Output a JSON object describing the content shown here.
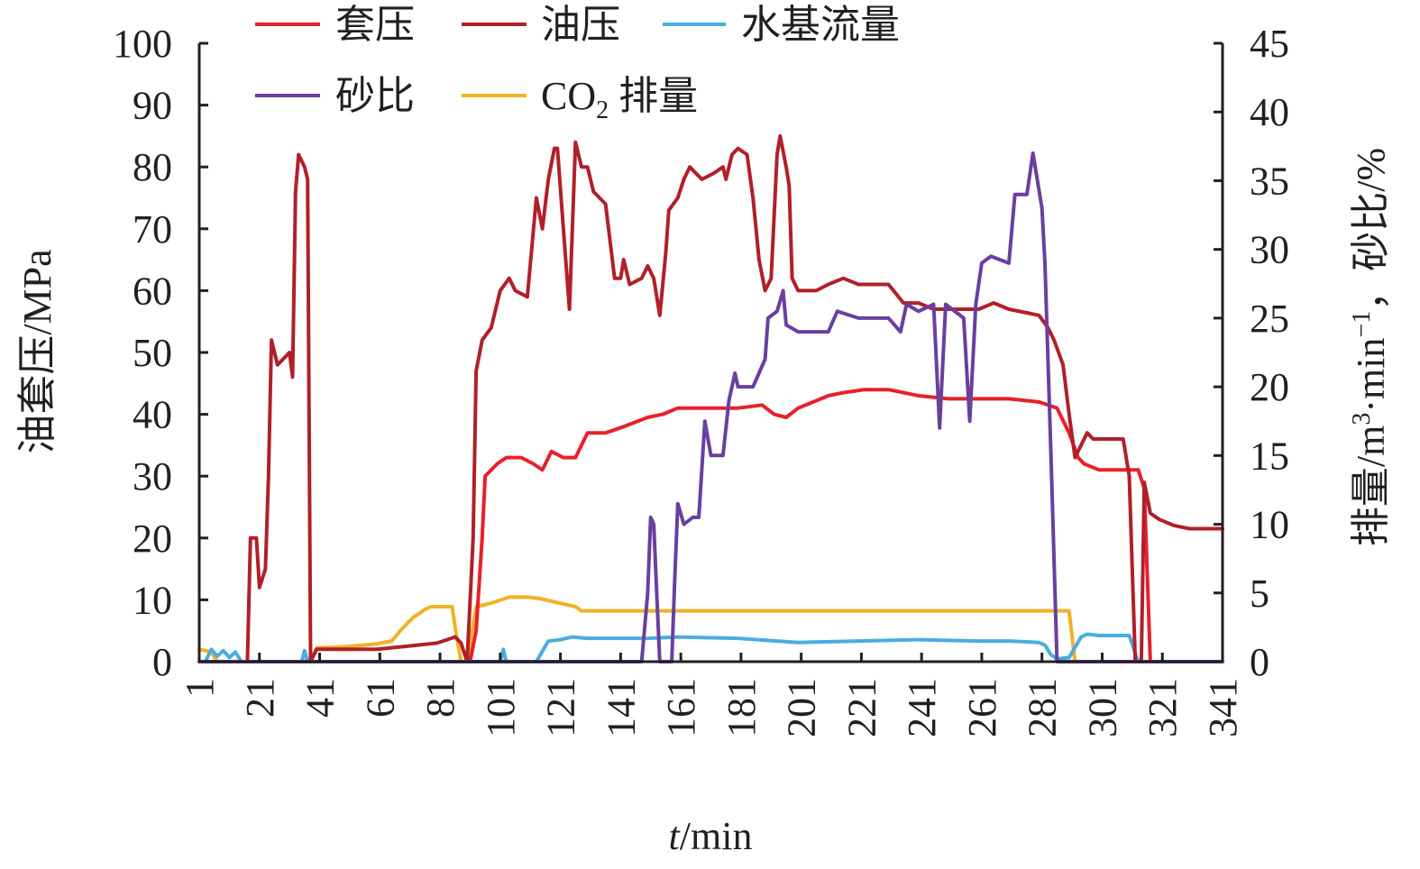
{
  "chart_data": {
    "type": "line",
    "xlabel_italic": "t",
    "xlabel_rest": "/min",
    "ylabel_left": "油套压/MPa",
    "ylabel_right_parts": [
      "排量/m",
      "3",
      "·min",
      "−1",
      "，砂比/%"
    ],
    "x_ticks": [
      "1",
      "21",
      "41",
      "61",
      "81",
      "101",
      "121",
      "141",
      "161",
      "181",
      "201",
      "221",
      "241",
      "261",
      "281",
      "301",
      "321",
      "341"
    ],
    "xlim": [
      1,
      341
    ],
    "y_left_ticks": [
      "0",
      "10",
      "20",
      "30",
      "40",
      "50",
      "60",
      "70",
      "80",
      "90",
      "100"
    ],
    "ylim_left": [
      0,
      100
    ],
    "y_right_ticks": [
      "0",
      "5",
      "10",
      "15",
      "20",
      "25",
      "30",
      "35",
      "40",
      "45"
    ],
    "ylim_right": [
      0,
      45
    ],
    "grid": false,
    "legend": {
      "placement": "top-left",
      "items": [
        {
          "key": "casing",
          "label": "套压"
        },
        {
          "key": "tubing",
          "label": "油压"
        },
        {
          "key": "water",
          "label": "水基流量"
        },
        {
          "key": "sand",
          "label": "砂比"
        },
        {
          "key": "co2",
          "label_main": "CO",
          "label_sub": "2",
          "label_after": " 排量"
        }
      ]
    },
    "series": [
      {
        "key": "casing",
        "axis": "left",
        "color": "#e8202a",
        "points": [
          [
            1,
            0
          ],
          [
            21,
            0
          ],
          [
            88,
            0
          ],
          [
            91,
            0
          ],
          [
            93,
            5
          ],
          [
            95,
            20
          ],
          [
            96,
            30
          ],
          [
            100,
            32
          ],
          [
            103,
            33
          ],
          [
            108,
            33
          ],
          [
            112,
            32
          ],
          [
            115,
            31
          ],
          [
            118,
            34
          ],
          [
            122,
            33
          ],
          [
            126,
            33
          ],
          [
            130,
            37
          ],
          [
            136,
            37
          ],
          [
            142,
            38
          ],
          [
            150,
            39.5
          ],
          [
            155,
            40
          ],
          [
            160,
            41
          ],
          [
            170,
            41
          ],
          [
            180,
            41
          ],
          [
            188,
            41.5
          ],
          [
            192,
            40
          ],
          [
            196,
            39.5
          ],
          [
            200,
            41
          ],
          [
            205,
            42
          ],
          [
            210,
            43
          ],
          [
            215,
            43.5
          ],
          [
            222,
            44
          ],
          [
            230,
            44
          ],
          [
            235,
            43.5
          ],
          [
            240,
            43
          ],
          [
            250,
            42.5
          ],
          [
            260,
            42.5
          ],
          [
            270,
            42.5
          ],
          [
            280,
            42
          ],
          [
            286,
            41
          ],
          [
            290,
            37
          ],
          [
            293,
            33
          ],
          [
            295,
            32
          ],
          [
            300,
            31
          ],
          [
            310,
            31
          ],
          [
            313,
            31
          ],
          [
            315,
            28
          ],
          [
            317,
            0
          ],
          [
            341,
            0
          ]
        ]
      },
      {
        "key": "tubing",
        "axis": "left",
        "color": "#b0202a",
        "points": [
          [
            1,
            0
          ],
          [
            17,
            0
          ],
          [
            18,
            20
          ],
          [
            20,
            20
          ],
          [
            21,
            12
          ],
          [
            23,
            15
          ],
          [
            24,
            30
          ],
          [
            25,
            52
          ],
          [
            27,
            48
          ],
          [
            29,
            49
          ],
          [
            31,
            50
          ],
          [
            32,
            46
          ],
          [
            33,
            76
          ],
          [
            34,
            82
          ],
          [
            36,
            80
          ],
          [
            37,
            78
          ],
          [
            38,
            0
          ],
          [
            40,
            2
          ],
          [
            60,
            2
          ],
          [
            70,
            2.5
          ],
          [
            80,
            3
          ],
          [
            86,
            4
          ],
          [
            88,
            3
          ],
          [
            90,
            0
          ],
          [
            92,
            20
          ],
          [
            93,
            47
          ],
          [
            95,
            52
          ],
          [
            98,
            54
          ],
          [
            101,
            60
          ],
          [
            104,
            62
          ],
          [
            106,
            60
          ],
          [
            110,
            59
          ],
          [
            113,
            75
          ],
          [
            115,
            70
          ],
          [
            117,
            78
          ],
          [
            119,
            83
          ],
          [
            120,
            83
          ],
          [
            122,
            70
          ],
          [
            124,
            57
          ],
          [
            126,
            84
          ],
          [
            128,
            80
          ],
          [
            130,
            80
          ],
          [
            132,
            76
          ],
          [
            136,
            74
          ],
          [
            137,
            70
          ],
          [
            139,
            62
          ],
          [
            141,
            62
          ],
          [
            142,
            65
          ],
          [
            144,
            61
          ],
          [
            148,
            62
          ],
          [
            150,
            64
          ],
          [
            152,
            62
          ],
          [
            154,
            56
          ],
          [
            156,
            66
          ],
          [
            157,
            73
          ],
          [
            160,
            75
          ],
          [
            162,
            78
          ],
          [
            164,
            80
          ],
          [
            166,
            79
          ],
          [
            168,
            78
          ],
          [
            172,
            79
          ],
          [
            175,
            80
          ],
          [
            176,
            78
          ],
          [
            178,
            82
          ],
          [
            180,
            83
          ],
          [
            183,
            82
          ],
          [
            185,
            75
          ],
          [
            187,
            65
          ],
          [
            189,
            60
          ],
          [
            191,
            62
          ],
          [
            193,
            82
          ],
          [
            194,
            85
          ],
          [
            196,
            80
          ],
          [
            197,
            77
          ],
          [
            198,
            62
          ],
          [
            200,
            60
          ],
          [
            206,
            60
          ],
          [
            210,
            61
          ],
          [
            215,
            62
          ],
          [
            220,
            61
          ],
          [
            230,
            61
          ],
          [
            235,
            58
          ],
          [
            240,
            58
          ],
          [
            245,
            57
          ],
          [
            260,
            57
          ],
          [
            265,
            58
          ],
          [
            270,
            57
          ],
          [
            280,
            56
          ],
          [
            283,
            54
          ],
          [
            285,
            52
          ],
          [
            288,
            48
          ],
          [
            290,
            40
          ],
          [
            292,
            33
          ],
          [
            294,
            35
          ],
          [
            296,
            37
          ],
          [
            298,
            36
          ],
          [
            302,
            36
          ],
          [
            305,
            36
          ],
          [
            308,
            36
          ],
          [
            310,
            30
          ],
          [
            312,
            0
          ],
          [
            314,
            0
          ],
          [
            315,
            29
          ],
          [
            317,
            24
          ],
          [
            320,
            23
          ],
          [
            325,
            22
          ],
          [
            330,
            21.5
          ],
          [
            341,
            21.5
          ]
        ]
      },
      {
        "key": "water",
        "axis": "right",
        "color": "#4aace0",
        "points": [
          [
            1,
            0
          ],
          [
            3,
            0
          ],
          [
            5,
            0.9
          ],
          [
            7,
            0.4
          ],
          [
            9,
            0.8
          ],
          [
            11,
            0.3
          ],
          [
            13,
            0.7
          ],
          [
            15,
            0
          ],
          [
            35,
            0
          ],
          [
            36,
            0.8
          ],
          [
            37,
            0
          ],
          [
            101,
            0
          ],
          [
            102,
            0.9
          ],
          [
            103,
            0
          ],
          [
            113,
            0
          ],
          [
            117,
            1.5
          ],
          [
            121,
            1.6
          ],
          [
            125,
            1.8
          ],
          [
            130,
            1.7
          ],
          [
            150,
            1.7
          ],
          [
            160,
            1.8
          ],
          [
            180,
            1.7
          ],
          [
            200,
            1.4
          ],
          [
            220,
            1.5
          ],
          [
            240,
            1.6
          ],
          [
            260,
            1.5
          ],
          [
            270,
            1.5
          ],
          [
            280,
            1.4
          ],
          [
            282,
            1.2
          ],
          [
            284,
            0.5
          ],
          [
            286,
            0.2
          ],
          [
            290,
            0.3
          ],
          [
            294,
            1.8
          ],
          [
            296,
            2.0
          ],
          [
            300,
            1.9
          ],
          [
            310,
            1.9
          ],
          [
            313,
            0
          ],
          [
            341,
            0
          ]
        ]
      },
      {
        "key": "sand",
        "axis": "right",
        "color": "#6a3fa0",
        "points": [
          [
            1,
            0
          ],
          [
            148,
            0
          ],
          [
            150,
            5
          ],
          [
            151,
            10.5
          ],
          [
            152,
            10
          ],
          [
            153,
            5
          ],
          [
            154,
            0
          ],
          [
            158,
            0
          ],
          [
            159,
            6
          ],
          [
            160,
            11.5
          ],
          [
            162,
            10
          ],
          [
            165,
            10.5
          ],
          [
            167,
            10.5
          ],
          [
            169,
            17.5
          ],
          [
            171,
            15
          ],
          [
            175,
            15
          ],
          [
            177,
            19
          ],
          [
            179,
            21
          ],
          [
            180,
            20
          ],
          [
            185,
            20
          ],
          [
            189,
            22
          ],
          [
            190,
            25
          ],
          [
            193,
            25.5
          ],
          [
            195,
            27
          ],
          [
            196,
            24.5
          ],
          [
            200,
            24
          ],
          [
            210,
            24
          ],
          [
            213,
            25.5
          ],
          [
            220,
            25
          ],
          [
            230,
            25
          ],
          [
            234,
            24
          ],
          [
            236,
            26
          ],
          [
            240,
            25.5
          ],
          [
            245,
            26
          ],
          [
            247,
            17
          ],
          [
            249,
            26
          ],
          [
            255,
            25
          ],
          [
            257,
            17.5
          ],
          [
            259,
            26
          ],
          [
            261,
            29
          ],
          [
            264,
            29.5
          ],
          [
            270,
            29
          ],
          [
            272,
            34
          ],
          [
            276,
            34
          ],
          [
            278,
            37
          ],
          [
            281,
            33
          ],
          [
            282,
            29
          ],
          [
            284,
            15
          ],
          [
            286,
            0
          ],
          [
            341,
            0
          ]
        ]
      },
      {
        "key": "co2",
        "axis": "right",
        "color": "#f2b125",
        "points": [
          [
            1,
            0.9
          ],
          [
            5,
            0.7
          ],
          [
            7,
            0
          ],
          [
            38,
            0
          ],
          [
            40,
            1
          ],
          [
            50,
            1.1
          ],
          [
            60,
            1.3
          ],
          [
            65,
            1.5
          ],
          [
            68,
            2.3
          ],
          [
            72,
            3.2
          ],
          [
            76,
            3.8
          ],
          [
            78,
            4.0
          ],
          [
            85,
            4.0
          ],
          [
            86,
            2.5
          ],
          [
            88,
            0
          ],
          [
            90,
            0
          ],
          [
            93,
            4.0
          ],
          [
            97,
            4.2
          ],
          [
            100,
            4.4
          ],
          [
            104,
            4.7
          ],
          [
            110,
            4.7
          ],
          [
            114,
            4.6
          ],
          [
            118,
            4.4
          ],
          [
            122,
            4.2
          ],
          [
            126,
            4.0
          ],
          [
            128,
            3.7
          ],
          [
            140,
            3.7
          ],
          [
            180,
            3.7
          ],
          [
            220,
            3.7
          ],
          [
            260,
            3.7
          ],
          [
            280,
            3.7
          ],
          [
            290,
            3.7
          ],
          [
            292,
            0
          ],
          [
            341,
            0
          ]
        ]
      }
    ]
  }
}
